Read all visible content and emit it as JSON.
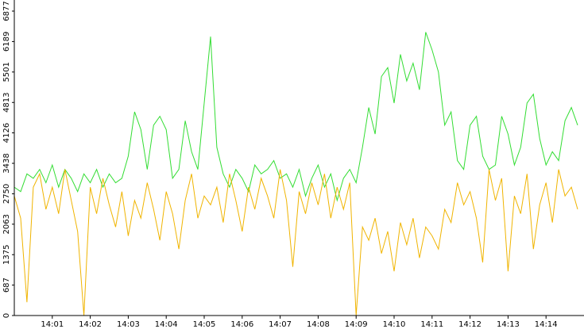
{
  "chart_data": {
    "type": "line",
    "categories": [
      null,
      null,
      null,
      null,
      null,
      null,
      "14:01",
      null,
      null,
      null,
      null,
      null,
      "14:02",
      null,
      null,
      null,
      null,
      null,
      "14:03",
      null,
      null,
      null,
      null,
      null,
      "14:04",
      null,
      null,
      null,
      null,
      null,
      "14:05",
      null,
      null,
      null,
      null,
      null,
      "14:06",
      null,
      null,
      null,
      null,
      null,
      "14:07",
      null,
      null,
      null,
      null,
      null,
      "14:08",
      null,
      null,
      null,
      null,
      null,
      "14:09",
      null,
      null,
      null,
      null,
      null,
      "14:10",
      null,
      null,
      null,
      null,
      null,
      "14:11",
      null,
      null,
      null,
      null,
      null,
      "14:12",
      null,
      null,
      null,
      null,
      null,
      "14:13",
      null,
      null,
      null,
      null,
      null,
      "14:14",
      null,
      null,
      null,
      null,
      null
    ],
    "series": [
      {
        "color": "#33dd33",
        "values": [
          2900,
          2800,
          3200,
          3100,
          3300,
          3000,
          3400,
          2900,
          3300,
          3100,
          2800,
          3200,
          3000,
          3300,
          2900,
          3200,
          3000,
          3100,
          3600,
          4600,
          4200,
          3300,
          4300,
          4500,
          4200,
          3100,
          3300,
          4400,
          3700,
          3300,
          4800,
          6300,
          3800,
          3200,
          2900,
          3300,
          3100,
          2800,
          3400,
          3200,
          3300,
          3500,
          3100,
          3200,
          2900,
          3300,
          2700,
          3100,
          3400,
          2900,
          3200,
          2600,
          3100,
          3300,
          3000,
          3800,
          4700,
          4100,
          5400,
          5600,
          4800,
          5900,
          5300,
          5700,
          5100,
          6400,
          6000,
          5500,
          4300,
          4600,
          3500,
          3300,
          4300,
          4500,
          3600,
          3300,
          3400,
          4500,
          4100,
          3400,
          3800,
          4800,
          5000,
          4000,
          3400,
          3700,
          3500,
          4400,
          4700,
          4300
        ]
      },
      {
        "color": "#f0b400",
        "values": [
          2700,
          2200,
          300,
          2900,
          3200,
          2400,
          2900,
          2300,
          3300,
          2600,
          1900,
          0,
          2900,
          2300,
          3100,
          2500,
          2000,
          2800,
          1800,
          2600,
          2200,
          3000,
          2400,
          1700,
          2800,
          2300,
          1500,
          2600,
          3200,
          2200,
          2700,
          2500,
          2900,
          2100,
          3200,
          2600,
          1900,
          2900,
          2400,
          3100,
          2700,
          2200,
          3300,
          2600,
          1100,
          2800,
          2300,
          3000,
          2500,
          3200,
          2200,
          2900,
          2400,
          3000,
          0,
          2000,
          1700,
          2200,
          1400,
          1900,
          1000,
          2100,
          1600,
          2200,
          1300,
          2000,
          1800,
          1500,
          2400,
          2100,
          3000,
          2500,
          2800,
          2200,
          1200,
          3300,
          2600,
          3100,
          1000,
          2700,
          2300,
          3200,
          1500,
          2500,
          3000,
          2100,
          3300,
          2700,
          2900,
          2400
        ]
      }
    ],
    "ylim": [
      0,
      6877
    ],
    "yticks": [
      0,
      687,
      1375,
      2063,
      2750,
      3438,
      4126,
      4813,
      5501,
      6189,
      6877
    ]
  }
}
